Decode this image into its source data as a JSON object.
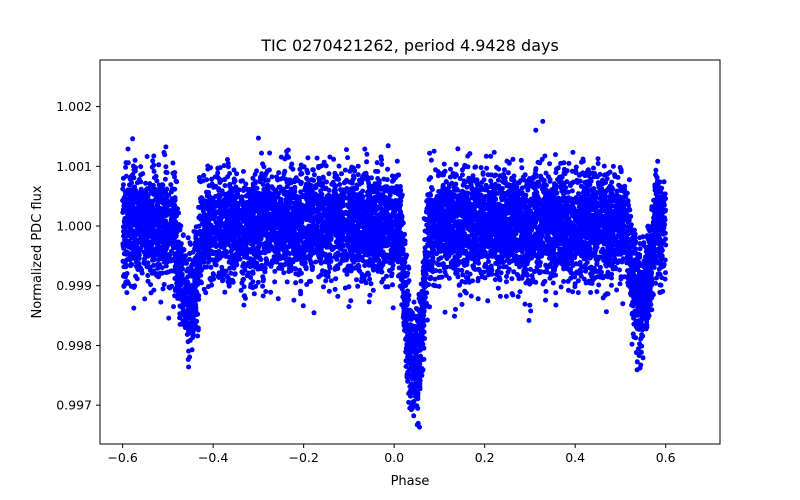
{
  "chart_data": {
    "type": "scatter",
    "title": "TIC 0270421262, period 4.9428 days",
    "xlabel": "Phase",
    "ylabel": "Normalized PDC flux",
    "xlim": [
      -0.65,
      0.72
    ],
    "ylim": [
      0.99635,
      1.00278
    ],
    "xticks": [
      -0.6,
      -0.4,
      -0.2,
      0.0,
      0.2,
      0.4,
      0.6
    ],
    "xtick_labels": [
      "−0.6",
      "−0.4",
      "−0.2",
      "0.0",
      "0.2",
      "0.4",
      "0.6"
    ],
    "yticks": [
      0.997,
      0.998,
      0.999,
      1.0,
      1.001,
      1.002
    ],
    "ytick_labels": [
      "0.997",
      "0.998",
      "0.999",
      "1.000",
      "1.001",
      "1.002"
    ],
    "marker_color": "#0000ff",
    "grid": false,
    "legend": "none",
    "series": [
      {
        "name": "PDC flux",
        "phase_range": [
          -0.6,
          0.6
        ],
        "baseline_flux": 1.0,
        "scatter_std": 0.00045,
        "primary_eclipse": {
          "center_phase": 0.045,
          "depth": 0.0024,
          "half_width": 0.03
        },
        "secondary_eclipses": [
          {
            "center_phase": -0.455,
            "depth": 0.0013,
            "half_width": 0.03
          },
          {
            "center_phase": 0.545,
            "depth": 0.0013,
            "half_width": 0.03
          }
        ],
        "n_points": 9000
      }
    ]
  }
}
